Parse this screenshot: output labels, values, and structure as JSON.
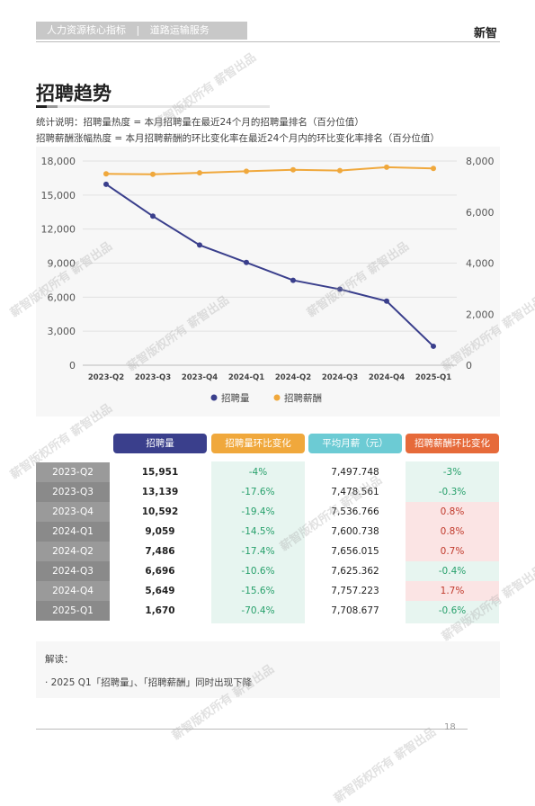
{
  "header": {
    "section": "人力资源核心指标",
    "separator": "|",
    "subsection": "道路运输服务",
    "brand": "新智"
  },
  "page": {
    "title": "招聘趋势",
    "note1": "统计说明：招聘量热度 = 本月招聘量在最近24个月的招聘量排名（百分位值）",
    "note2": "招聘薪酬涨幅热度 = 本月招聘薪酬的环比变化率在最近24个月内的环比变化率排名（百分位值）",
    "page_number": "18",
    "watermark": "薪智版权所有 薪智出品"
  },
  "chart_data": {
    "type": "line",
    "categories": [
      "2023-Q2",
      "2023-Q3",
      "2023-Q4",
      "2024-Q1",
      "2024-Q2",
      "2024-Q3",
      "2024-Q4",
      "2025-Q1"
    ],
    "series": [
      {
        "name": "招聘量",
        "axis": "left",
        "color": "#3a3f8c",
        "values": [
          15951,
          13139,
          10592,
          9059,
          7486,
          6696,
          5649,
          1670
        ]
      },
      {
        "name": "招聘薪酬",
        "axis": "right",
        "color": "#f0a83c",
        "values": [
          7497.748,
          7478.561,
          7536.766,
          7600.738,
          7656.015,
          7625.362,
          7757.223,
          7708.677
        ]
      }
    ],
    "y_left": {
      "ylim": [
        0,
        18000
      ],
      "ticks": [
        "0",
        "3,000",
        "6,000",
        "9,000",
        "12,000",
        "15,000",
        "18,000"
      ]
    },
    "y_right": {
      "ylim": [
        0,
        8000
      ],
      "ticks": [
        "0",
        "2,000",
        "4,000",
        "6,000",
        "8,000"
      ]
    },
    "legend": "bottom"
  },
  "table": {
    "headers": [
      "招聘量",
      "招聘量环比变化",
      "平均月薪（元）",
      "招聘薪酬环比变化"
    ],
    "header_colors": [
      "#3a3f8c",
      "#f0a83c",
      "#6ccbd4",
      "#e66a3a"
    ],
    "rows": [
      {
        "period": "2023-Q2",
        "volume": "15,951",
        "volume_change": "-4%",
        "salary": "7,497.748",
        "salary_change": "-3%",
        "salary_up": false
      },
      {
        "period": "2023-Q3",
        "volume": "13,139",
        "volume_change": "-17.6%",
        "salary": "7,478.561",
        "salary_change": "-0.3%",
        "salary_up": false
      },
      {
        "period": "2023-Q4",
        "volume": "10,592",
        "volume_change": "-19.4%",
        "salary": "7,536.766",
        "salary_change": "0.8%",
        "salary_up": true
      },
      {
        "period": "2024-Q1",
        "volume": "9,059",
        "volume_change": "-14.5%",
        "salary": "7,600.738",
        "salary_change": "0.8%",
        "salary_up": true
      },
      {
        "period": "2024-Q2",
        "volume": "7,486",
        "volume_change": "-17.4%",
        "salary": "7,656.015",
        "salary_change": "0.7%",
        "salary_up": true
      },
      {
        "period": "2024-Q3",
        "volume": "6,696",
        "volume_change": "-10.6%",
        "salary": "7,625.362",
        "salary_change": "-0.4%",
        "salary_up": false
      },
      {
        "period": "2024-Q4",
        "volume": "5,649",
        "volume_change": "-15.6%",
        "salary": "7,757.223",
        "salary_change": "1.7%",
        "salary_up": true
      },
      {
        "period": "2025-Q1",
        "volume": "1,670",
        "volume_change": "-70.4%",
        "salary": "7,708.677",
        "salary_change": "-0.6%",
        "salary_up": false
      }
    ]
  },
  "interpretation": {
    "label": "解读：",
    "text": "· 2025 Q1「招聘量」、「招聘薪酬」同时出现下降"
  }
}
